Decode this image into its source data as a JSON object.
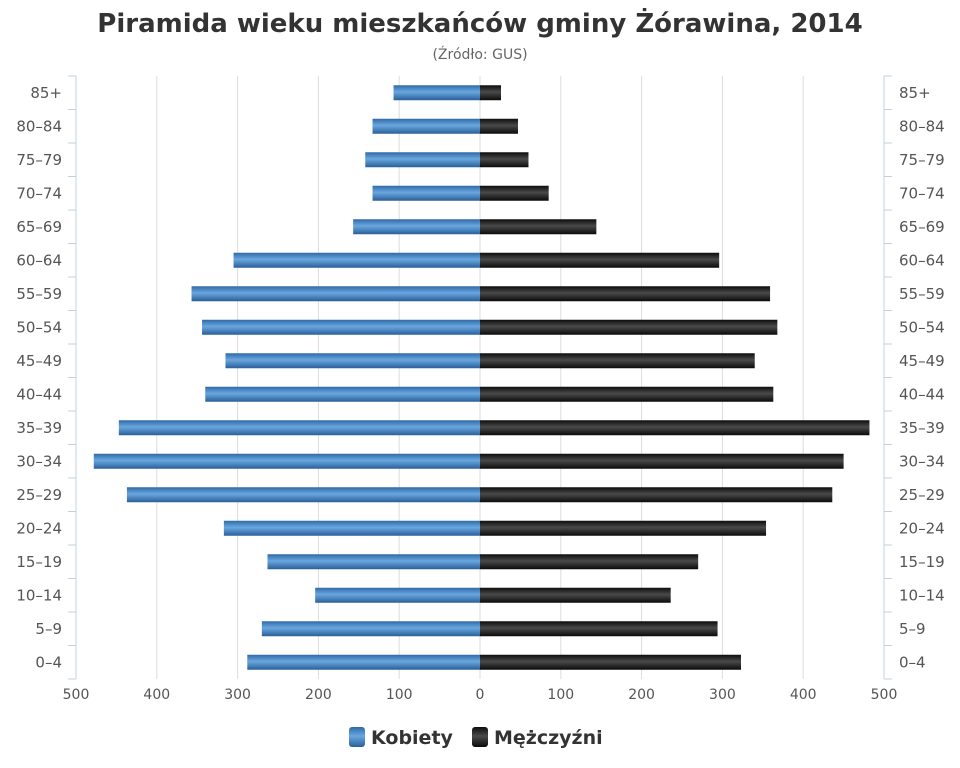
{
  "chart_data": {
    "type": "bar",
    "orientation": "horizontal",
    "title": "Piramida wieku mieszkańców gminy Żórawina, 2014",
    "subtitle": "(Źródło: GUS)",
    "categories": [
      "85+",
      "80–84",
      "75–79",
      "70–74",
      "65–69",
      "60–64",
      "55–59",
      "50–54",
      "45–49",
      "40–44",
      "35–39",
      "30–34",
      "25–29",
      "20–24",
      "15–19",
      "10–14",
      "5–9",
      "0–4"
    ],
    "series": [
      {
        "name": "Kobiety",
        "color": "#3d7fbf",
        "values": [
          107,
          133,
          142,
          133,
          157,
          305,
          357,
          344,
          315,
          340,
          447,
          478,
          437,
          317,
          263,
          204,
          270,
          288
        ]
      },
      {
        "name": "Mężczyźni",
        "color": "#1c1c1c",
        "values": [
          26,
          47,
          60,
          85,
          144,
          296,
          359,
          368,
          340,
          363,
          482,
          450,
          436,
          354,
          270,
          236,
          294,
          323
        ]
      }
    ],
    "xlim": [
      -500,
      500
    ],
    "ticks": [
      "500",
      "400",
      "300",
      "200",
      "100",
      "0",
      "100",
      "200",
      "300",
      "400",
      "500"
    ],
    "grid": true,
    "legend_position": "bottom"
  }
}
